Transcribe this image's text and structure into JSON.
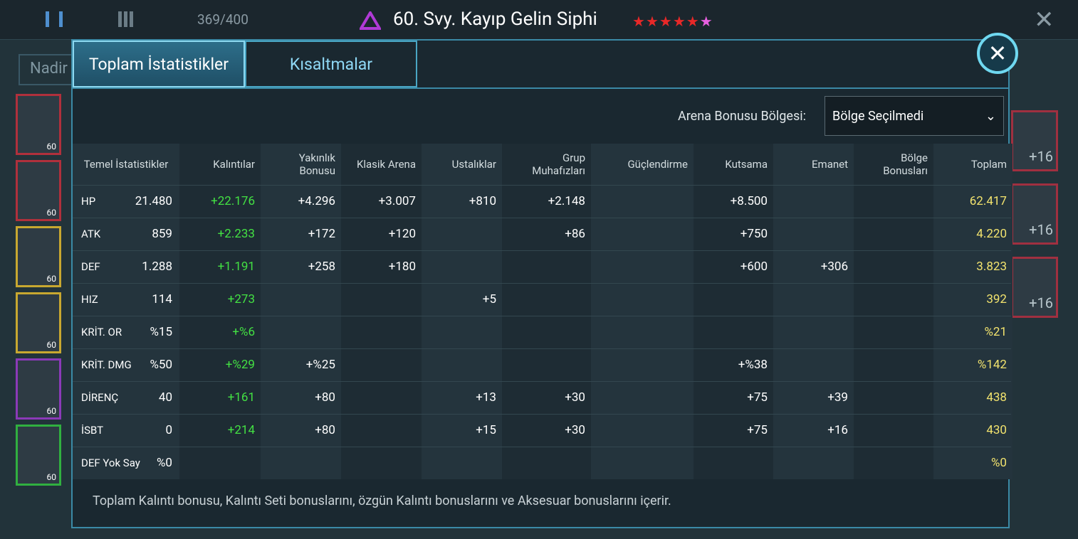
{
  "header": {
    "capacity": "369/400",
    "title": "60. Svy. Kayıp Gelin Siphi",
    "stars": 6
  },
  "background": {
    "search": "Nadir",
    "left_levels": [
      "60",
      "60",
      "60",
      "60",
      "60",
      "60"
    ],
    "right_bonus": [
      "+16",
      "+16",
      "+16"
    ]
  },
  "tabs": [
    "Toplam İstatistikler",
    "Kısaltmalar"
  ],
  "arena": {
    "label": "Arena Bonusu Bölgesi:",
    "selected": "Bölge Seçilmedi"
  },
  "table": {
    "columns": [
      "Temel İstatistikler",
      "Kalıntılar",
      "Yakınlık Bonusu",
      "Klasik Arena",
      "Ustalıklar",
      "Grup Muhafızları",
      "Güçlendirme",
      "Kutsama",
      "Emanet",
      "Bölge Bonusları",
      "Toplam"
    ],
    "rows": [
      [
        "HP",
        "21.480",
        "+22.176",
        "+4.296",
        "+3.007",
        "+810",
        "+2.148",
        null,
        "+8.500",
        null,
        null,
        "62.417"
      ],
      [
        "ATK",
        "859",
        "+2.233",
        "+172",
        "+120",
        null,
        "+86",
        null,
        "+750",
        null,
        null,
        "4.220"
      ],
      [
        "DEF",
        "1.288",
        "+1.191",
        "+258",
        "+180",
        null,
        null,
        null,
        "+600",
        "+306",
        null,
        "3.823"
      ],
      [
        "HIZ",
        "114",
        "+273",
        null,
        null,
        "+5",
        null,
        null,
        null,
        null,
        null,
        "392"
      ],
      [
        "KRİT. OR",
        "%15",
        "+%6",
        null,
        null,
        null,
        null,
        null,
        null,
        null,
        null,
        "%21"
      ],
      [
        "KRİT. DMG",
        "%50",
        "+%29",
        "+%25",
        null,
        null,
        null,
        null,
        "+%38",
        null,
        null,
        "%142"
      ],
      [
        "DİRENÇ",
        "40",
        "+161",
        "+80",
        null,
        "+13",
        "+30",
        null,
        "+75",
        "+39",
        null,
        "438"
      ],
      [
        "İSBT",
        "0",
        "+214",
        "+80",
        null,
        "+15",
        "+30",
        null,
        "+75",
        "+16",
        null,
        "430"
      ],
      [
        "DEF Yok Say",
        "%0",
        null,
        null,
        null,
        null,
        null,
        null,
        null,
        null,
        null,
        "%0"
      ]
    ]
  },
  "footer": "Toplam Kalıntı bonusu, Kalıntı Seti bonuslarını, özgün Kalıntı bonuslarını ve Aksesuar bonuslarını içerir."
}
